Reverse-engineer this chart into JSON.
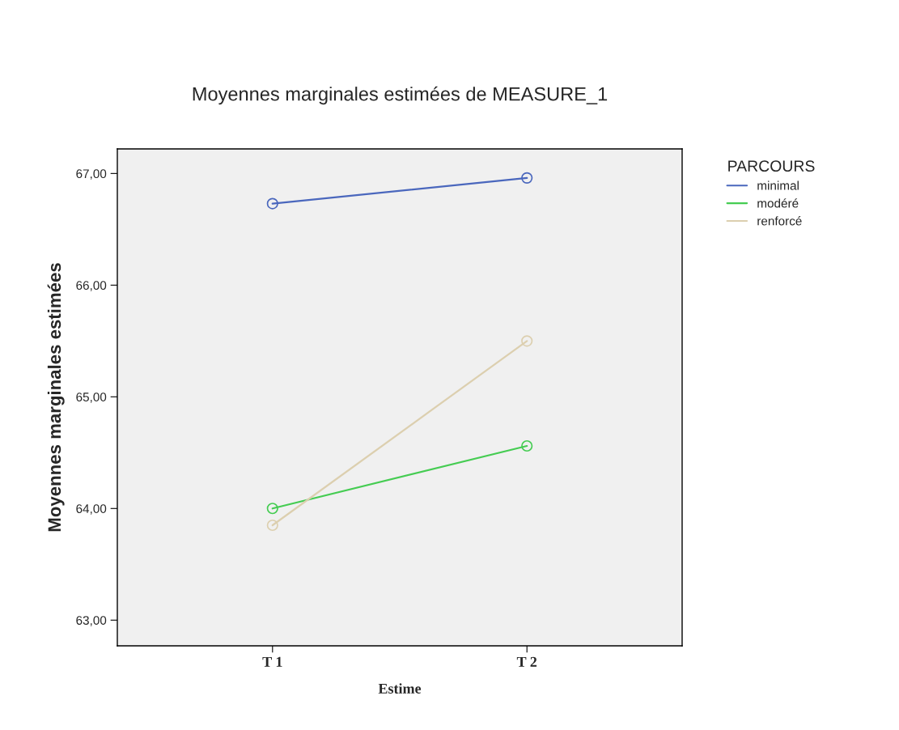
{
  "chart_data": {
    "type": "line",
    "title": "Moyennes marginales estimées de MEASURE_1",
    "xlabel": "Estime",
    "ylabel": "Moyennes marginales estimées",
    "legend_title": "PARCOURS",
    "categories": [
      "T 1",
      "T 2"
    ],
    "series": [
      {
        "name": "minimal",
        "color": "#4a67bd",
        "values": [
          66.73,
          66.96
        ]
      },
      {
        "name": "modéré",
        "color": "#45cc52",
        "values": [
          64.0,
          64.56
        ]
      },
      {
        "name": "renforcé",
        "color": "#dccfaf",
        "values": [
          63.85,
          65.5
        ]
      }
    ],
    "ylim": [
      62.77,
      67.22
    ],
    "yticks": [
      {
        "value": 63,
        "label": "63,00"
      },
      {
        "value": 64,
        "label": "64,00"
      },
      {
        "value": 65,
        "label": "65,00"
      },
      {
        "value": 66,
        "label": "66,00"
      },
      {
        "value": 67,
        "label": "67,00"
      }
    ],
    "marker": "circle",
    "line_style": "solid",
    "legend": "top right",
    "grid": false
  }
}
